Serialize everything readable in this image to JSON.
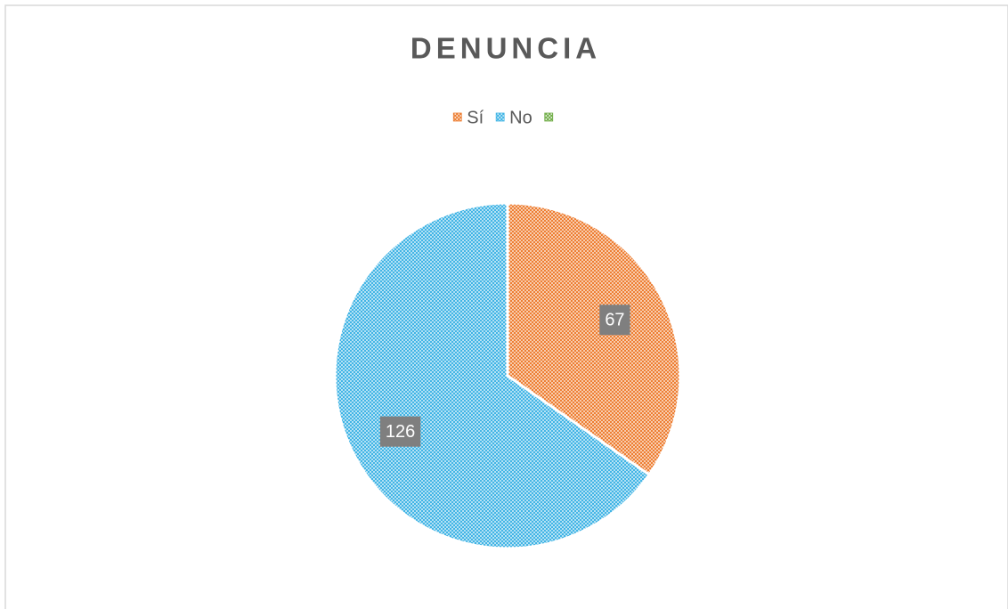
{
  "chart_data": {
    "type": "pie",
    "title": "DENUNCIA",
    "categories": [
      "Sí",
      "No",
      null
    ],
    "values": [
      67,
      126,
      0
    ],
    "colors": [
      "#ed7d31",
      "#3fb4e5",
      "#70ad47"
    ],
    "legend": "top"
  }
}
